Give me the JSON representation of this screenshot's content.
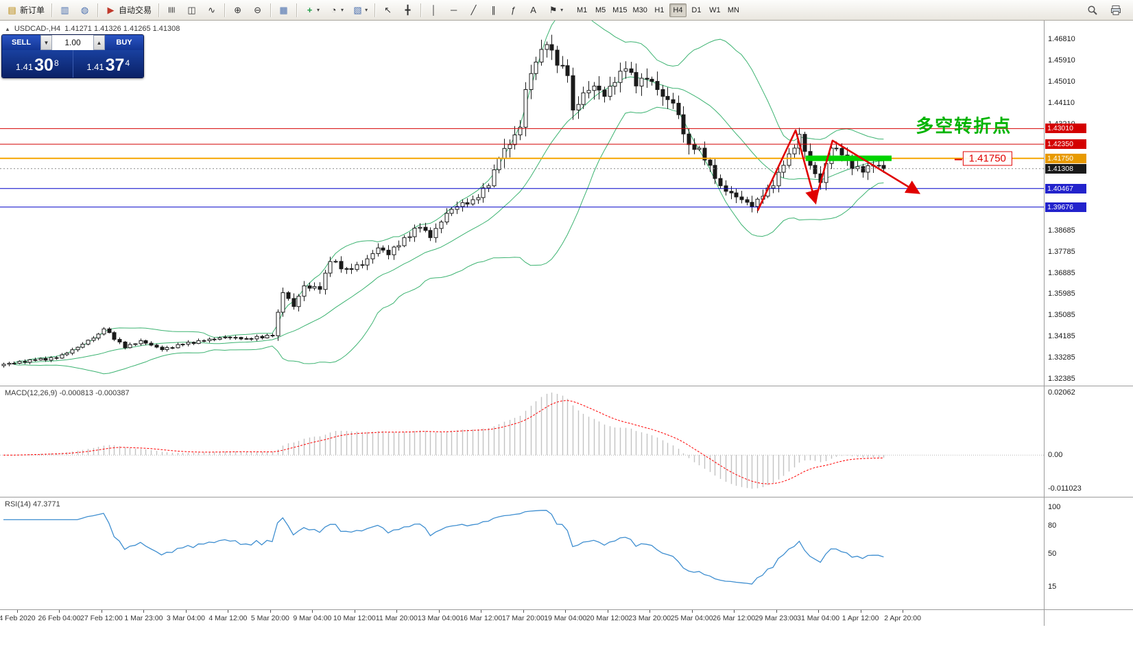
{
  "toolbar": {
    "dropdown_glyph": "▾",
    "groups": [
      [
        {
          "name": "new-order-button",
          "icon": "new-order-icon",
          "glyph": "▤",
          "color": "#b8860b",
          "label": "新订单"
        }
      ],
      [
        {
          "name": "charts-button",
          "icon": "chart-window-icon",
          "glyph": "▥",
          "color": "#4a6fae"
        },
        {
          "name": "alerts-button",
          "icon": "megaphone-icon",
          "glyph": "◍",
          "color": "#4a6fae"
        }
      ],
      [
        {
          "name": "autotrading-button",
          "icon": "autotrading-icon",
          "glyph": "▶",
          "color": "#c0392b",
          "label": "自动交易"
        }
      ],
      [
        {
          "name": "bar-chart-button",
          "icon": "bar-chart-icon",
          "glyph": "≣",
          "color": "#333",
          "rot": true
        },
        {
          "name": "candlestick-chart-button",
          "icon": "candlestick-icon",
          "glyph": "◫",
          "color": "#333"
        },
        {
          "name": "line-chart-button",
          "icon": "line-chart-icon",
          "glyph": "∿",
          "color": "#333"
        }
      ],
      [
        {
          "name": "zoom-in-button",
          "icon": "zoom-in-icon",
          "glyph": "⊕",
          "color": "#333"
        },
        {
          "name": "zoom-out-button",
          "icon": "zoom-out-icon",
          "glyph": "⊖",
          "color": "#333"
        }
      ],
      [
        {
          "name": "tile-windows-button",
          "icon": "tile-windows-icon",
          "glyph": "▦",
          "color": "#4a6fae"
        }
      ],
      [
        {
          "name": "indicators-button",
          "icon": "indicators-icon",
          "glyph": "+",
          "color": "#1d9d45",
          "dropdown": true
        },
        {
          "name": "periods-button",
          "icon": "clock-icon",
          "glyph": "◔",
          "color": "#333",
          "dropdown": true
        },
        {
          "name": "templates-button",
          "icon": "template-icon",
          "glyph": "▧",
          "color": "#4a6fae",
          "dropdown": true
        }
      ],
      [
        {
          "name": "cursor-button",
          "icon": "cursor-icon",
          "glyph": "↖",
          "color": "#333"
        },
        {
          "name": "crosshair-button",
          "icon": "crosshair-icon",
          "glyph": "╋",
          "color": "#333"
        }
      ],
      [
        {
          "name": "vertical-line-button",
          "icon": "vertical-line-icon",
          "glyph": "│",
          "color": "#333"
        },
        {
          "name": "horizontal-line-button",
          "icon": "horizontal-line-icon",
          "glyph": "─",
          "color": "#333"
        },
        {
          "name": "trendline-button",
          "icon": "trendline-icon",
          "glyph": "╱",
          "color": "#333"
        },
        {
          "name": "channel-button",
          "icon": "channel-icon",
          "glyph": "∥",
          "color": "#333"
        },
        {
          "name": "fibonacci-button",
          "icon": "fibonacci-icon",
          "glyph": "ƒ",
          "color": "#333"
        },
        {
          "name": "text-button",
          "icon": "text-icon",
          "glyph": "A",
          "color": "#333"
        },
        {
          "name": "arrows-button",
          "icon": "flag-icon",
          "glyph": "⚑",
          "color": "#333",
          "dropdown": true
        }
      ]
    ],
    "timeframes": [
      "M1",
      "M5",
      "M15",
      "M30",
      "H1",
      "H4",
      "D1",
      "W1",
      "MN"
    ],
    "active_timeframe": "H4"
  },
  "chart_header": {
    "collapse_glyph": "▲",
    "symbol": "USDCAD-,H4",
    "ohlc": "1.41271 1.41326 1.41265 1.41308"
  },
  "trade_panel": {
    "sell_label": "SELL",
    "buy_label": "BUY",
    "volume": "1.00",
    "volume_down_glyph": "▼",
    "volume_up_glyph": "▲",
    "sell_price_prefix": "1.41",
    "sell_price_main": "30",
    "sell_price_pip": "8",
    "buy_price_prefix": "1.41",
    "buy_price_main": "37",
    "buy_price_pip": "4"
  },
  "annotations": {
    "turning_point_text": "多空转折点",
    "price_box_label": "1.41750"
  },
  "levels": [
    {
      "label": "1.43010",
      "price": 1.4301,
      "color": "#d40000",
      "tag_bg": "#d40000",
      "width": 1
    },
    {
      "label": "1.42350",
      "price": 1.4235,
      "color": "#d40000",
      "tag_bg": "#d40000",
      "width": 1
    },
    {
      "label": "1.41750",
      "price": 1.4175,
      "color": "#f5a500",
      "tag_bg": "#e89a00",
      "width": 2
    },
    {
      "label": "1.41308",
      "price": 1.41308,
      "color": "#8a8a8a",
      "tag_bg": "#1a1a1a",
      "width": 1,
      "dashed": true
    },
    {
      "label": "1.40467",
      "price": 1.40467,
      "color": "#0000c8",
      "tag_bg": "#2323cc",
      "width": 1
    },
    {
      "label": "1.39676",
      "price": 1.39676,
      "color": "#0000c8",
      "tag_bg": "#2323cc",
      "width": 1
    }
  ],
  "price_axis": {
    "labels": [
      "1.46810",
      "1.45910",
      "1.45010",
      "1.44110",
      "1.43210",
      "1.38685",
      "1.37785",
      "1.36885",
      "1.35985",
      "1.35085",
      "1.34185",
      "1.33285",
      "1.32385"
    ]
  },
  "macd": {
    "label": "MACD(12,26,9) -0.000813 -0.000387",
    "axis_labels": [
      "0.02062",
      "0.00",
      "-0.011023"
    ],
    "axis_values": [
      0.02062,
      0,
      -0.011023
    ]
  },
  "rsi": {
    "label": "RSI(14) 47.3771",
    "axis_labels": [
      "100",
      "80",
      "50",
      "15"
    ],
    "axis_values": [
      100,
      80,
      50,
      15
    ]
  },
  "time_axis": [
    "4 Feb 2020",
    "26 Feb 04:00",
    "27 Feb 12:00",
    "1 Mar 23:00",
    "3 Mar 04:00",
    "4 Mar 12:00",
    "5 Mar 20:00",
    "9 Mar 04:00",
    "10 Mar 12:00",
    "11 Mar 20:00",
    "13 Mar 04:00",
    "16 Mar 12:00",
    "17 Mar 20:00",
    "19 Mar 04:00",
    "20 Mar 12:00",
    "23 Mar 20:00",
    "25 Mar 04:00",
    "26 Mar 12:00",
    "29 Mar 23:00",
    "31 Mar 04:00",
    "1 Apr 12:00",
    "2 Apr 20:00"
  ],
  "chart_data": {
    "type": "candlestick",
    "symbol": "USDCAD",
    "timeframe": "H4",
    "candle_count": 168,
    "price_range": {
      "max": 1.476,
      "min": 1.3209
    },
    "close_anchors": [
      [
        0,
        1.33
      ],
      [
        6,
        1.3318
      ],
      [
        10,
        1.3326
      ],
      [
        14,
        1.3372
      ],
      [
        18,
        1.3428
      ],
      [
        19,
        1.345
      ],
      [
        23,
        1.337
      ],
      [
        26,
        1.34
      ],
      [
        30,
        1.3362
      ],
      [
        34,
        1.3385
      ],
      [
        38,
        1.34
      ],
      [
        42,
        1.3415
      ],
      [
        46,
        1.3409
      ],
      [
        51,
        1.3421
      ],
      [
        53,
        1.3604
      ],
      [
        55,
        1.3545
      ],
      [
        57,
        1.3633
      ],
      [
        60,
        1.3618
      ],
      [
        62,
        1.3736
      ],
      [
        65,
        1.3706
      ],
      [
        68,
        1.3721
      ],
      [
        71,
        1.3794
      ],
      [
        73,
        1.3765
      ],
      [
        76,
        1.3838
      ],
      [
        79,
        1.3882
      ],
      [
        81,
        1.3838
      ],
      [
        84,
        1.3941
      ],
      [
        86,
        1.397
      ],
      [
        89,
        1.3999
      ],
      [
        92,
        1.4058
      ],
      [
        94,
        1.4175
      ],
      [
        96,
        1.4233
      ],
      [
        98,
        1.4307
      ],
      [
        99,
        1.4467
      ],
      [
        101,
        1.4584
      ],
      [
        103,
        1.4658
      ],
      [
        105,
        1.457
      ],
      [
        107,
        1.4526
      ],
      [
        108,
        1.438
      ],
      [
        110,
        1.4453
      ],
      [
        112,
        1.4482
      ],
      [
        114,
        1.4438
      ],
      [
        116,
        1.4497
      ],
      [
        118,
        1.4555
      ],
      [
        120,
        1.4482
      ],
      [
        122,
        1.4511
      ],
      [
        124,
        1.4467
      ],
      [
        125,
        1.4438
      ],
      [
        127,
        1.4409
      ],
      [
        130,
        1.4233
      ],
      [
        132,
        1.4218
      ],
      [
        134,
        1.4145
      ],
      [
        136,
        1.4058
      ],
      [
        138,
        1.4028
      ],
      [
        140,
        1.3999
      ],
      [
        142,
        1.397
      ],
      [
        144,
        1.4014
      ],
      [
        146,
        1.4058
      ],
      [
        148,
        1.4145
      ],
      [
        150,
        1.4218
      ],
      [
        151,
        1.4277
      ],
      [
        153,
        1.4145
      ],
      [
        155,
        1.4072
      ],
      [
        157,
        1.4218
      ],
      [
        159,
        1.4189
      ],
      [
        161,
        1.4131
      ],
      [
        163,
        1.4116
      ],
      [
        165,
        1.4145
      ],
      [
        167,
        1.4131
      ]
    ],
    "volatility": [
      [
        0,
        0.0009
      ],
      [
        52,
        0.0022
      ],
      [
        95,
        0.0042
      ],
      [
        131,
        0.0028
      ],
      [
        152,
        0.0034
      ]
    ],
    "indicators": {
      "bollinger": {
        "period": 20,
        "deviation": 2
      },
      "macd": {
        "fast": 12,
        "slow": 26,
        "signal": 9,
        "current": [
          -0.000813,
          -0.000387
        ]
      },
      "rsi": {
        "period": 14,
        "current": 47.3771
      }
    },
    "macd_peak": 0.0206,
    "colors": {
      "candle": "#1a1a1a",
      "candle_up_fill": "#ffffff",
      "bollinger": "#3cb371",
      "macd_histogram": "#c2c2c2",
      "macd_signal": "#ff0000",
      "rsi": "#3e8ed0",
      "arrow": "#e00000",
      "highlight": "#00d300",
      "level_red": "#d40000",
      "level_blue": "#0000c8",
      "level_orange": "#f5a500"
    },
    "annotations": {
      "arrow_points": [
        [
          143.1,
          1.3952
        ],
        [
          150.3,
          1.4294
        ],
        [
          154.0,
          1.3993
        ],
        [
          157.3,
          1.425
        ],
        [
          173.4,
          1.4031
        ]
      ],
      "highlight": {
        "from_index": 152.2,
        "to_index": 168.5,
        "price": 1.4175
      },
      "text": {
        "index": 182.2,
        "price": 1.4317
      },
      "price_box": {
        "index": 186.7,
        "price": 1.4174
      }
    }
  }
}
